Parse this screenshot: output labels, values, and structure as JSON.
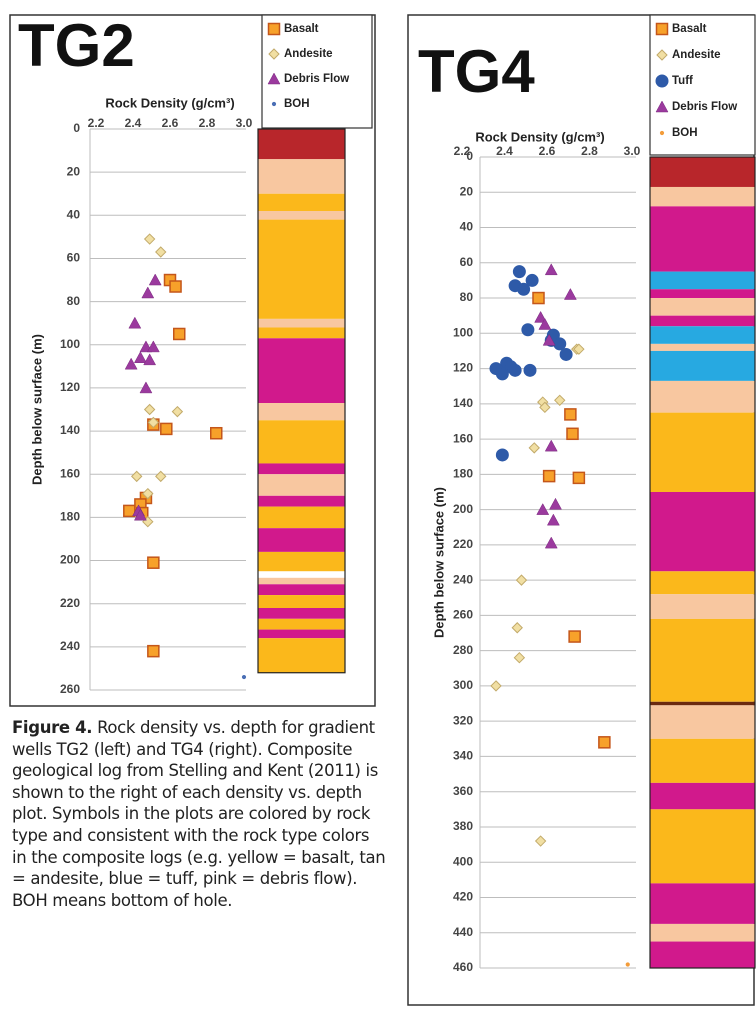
{
  "chart_data": [
    {
      "type": "scatter",
      "title": "TG2",
      "x_label": "Rock Density (g/cm³)",
      "y_label": "Depth below surface (m)",
      "xlim": [
        2.2,
        3.0
      ],
      "xticks": [
        2.2,
        2.4,
        2.6,
        2.8,
        {
          "value": 3,
          "label": "3.0"
        }
      ],
      "ylim": [
        0,
        260
      ],
      "yticks": [
        0,
        20,
        40,
        60,
        80,
        100,
        120,
        140,
        160,
        180,
        200,
        220,
        240,
        260
      ],
      "y_inverted": true,
      "x_axis_top": true,
      "grid": true,
      "legend": "top-right",
      "series": [
        {
          "name": "Basalt",
          "marker": "square",
          "color": "#f7a12a",
          "edge": "#c4561a",
          "x": [
            2.6,
            2.63,
            2.65,
            2.51,
            2.58,
            2.85,
            2.47,
            2.44,
            2.38,
            2.45,
            2.51,
            2.51
          ],
          "y": [
            70,
            73,
            95,
            137,
            139,
            141,
            171,
            174,
            177,
            178,
            201,
            242
          ]
        },
        {
          "name": "Andesite",
          "marker": "diamond",
          "color": "#f1dfa3",
          "edge": "#c2aa6a",
          "x": [
            2.49,
            2.55,
            2.49,
            2.64,
            2.51,
            2.42,
            2.55,
            2.48,
            2.48
          ],
          "y": [
            51,
            57,
            130,
            131,
            136,
            161,
            161,
            169,
            182
          ]
        },
        {
          "name": "Debris Flow",
          "marker": "triangle",
          "color": "#9b3a9e",
          "edge": "#7a2a7e",
          "x": [
            2.52,
            2.48,
            2.41,
            2.47,
            2.51,
            2.39,
            2.44,
            2.49,
            2.47,
            2.43,
            2.44
          ],
          "y": [
            70,
            76,
            90,
            101,
            101,
            109,
            106,
            107,
            120,
            177,
            179
          ]
        },
        {
          "name": "BOH",
          "marker": "dot",
          "color": "#4a6fb5",
          "edge": "#4a6fb5",
          "x": [
            3.0
          ],
          "y": [
            254
          ]
        }
      ],
      "log": [
        {
          "from": 0,
          "to": 14,
          "color": "#b8262b"
        },
        {
          "from": 14,
          "to": 30,
          "color": "#f8c7a0"
        },
        {
          "from": 30,
          "to": 38,
          "color": "#fbb81b"
        },
        {
          "from": 38,
          "to": 42,
          "color": "#f8c7a0"
        },
        {
          "from": 42,
          "to": 88,
          "color": "#fbb81b"
        },
        {
          "from": 88,
          "to": 92,
          "color": "#f8c7a0"
        },
        {
          "from": 92,
          "to": 97,
          "color": "#fbb81b"
        },
        {
          "from": 97,
          "to": 127,
          "color": "#d1198c"
        },
        {
          "from": 127,
          "to": 135,
          "color": "#f8c7a0"
        },
        {
          "from": 135,
          "to": 155,
          "color": "#fbb81b"
        },
        {
          "from": 155,
          "to": 160,
          "color": "#d1198c"
        },
        {
          "from": 160,
          "to": 170,
          "color": "#f8c7a0"
        },
        {
          "from": 170,
          "to": 175,
          "color": "#d1198c"
        },
        {
          "from": 175,
          "to": 185,
          "color": "#fbb81b"
        },
        {
          "from": 185,
          "to": 196,
          "color": "#d1198c"
        },
        {
          "from": 196,
          "to": 205,
          "color": "#fbb81b"
        },
        {
          "from": 205,
          "to": 208,
          "color": "#ffffff"
        },
        {
          "from": 208,
          "to": 211,
          "color": "#f8c7a0"
        },
        {
          "from": 211,
          "to": 216,
          "color": "#d1198c"
        },
        {
          "from": 216,
          "to": 222,
          "color": "#fbb81b"
        },
        {
          "from": 222,
          "to": 227,
          "color": "#d1198c"
        },
        {
          "from": 227,
          "to": 232,
          "color": "#fbb81b"
        },
        {
          "from": 232,
          "to": 236,
          "color": "#d1198c"
        },
        {
          "from": 236,
          "to": 252,
          "color": "#fbb81b"
        }
      ]
    },
    {
      "type": "scatter",
      "title": "TG4",
      "x_label": "Rock Density (g/cm³)",
      "y_label": "Depth below surface (m)",
      "xlim": [
        2.2,
        3.0
      ],
      "xticks": [
        2.2,
        2.4,
        2.6,
        2.8,
        {
          "value": 3,
          "label": "3.0"
        }
      ],
      "ylim": [
        0,
        460
      ],
      "yticks": [
        0,
        20,
        40,
        60,
        80,
        100,
        120,
        140,
        160,
        180,
        200,
        220,
        240,
        260,
        280,
        300,
        320,
        340,
        360,
        380,
        400,
        420,
        440,
        460
      ],
      "y_inverted": true,
      "x_axis_top": true,
      "grid": true,
      "legend": "top-right",
      "series": [
        {
          "name": "Basalt",
          "marker": "square",
          "color": "#f7a12a",
          "edge": "#c4561a",
          "x": [
            2.56,
            2.71,
            2.72,
            2.61,
            2.75,
            2.73,
            2.87
          ],
          "y": [
            80,
            146,
            157,
            181,
            182,
            272,
            332
          ]
        },
        {
          "name": "Andesite",
          "marker": "diamond",
          "color": "#f1dfa3",
          "edge": "#c2aa6a",
          "x": [
            2.74,
            2.75,
            2.58,
            2.59,
            2.66,
            2.54,
            2.48,
            2.46,
            2.47,
            2.36,
            2.57
          ],
          "y": [
            109,
            109,
            139,
            142,
            138,
            165,
            240,
            267,
            284,
            300,
            388
          ]
        },
        {
          "name": "Tuff",
          "marker": "circle",
          "color": "#2e5aa8",
          "edge": "#2e5aa8",
          "x": [
            2.47,
            2.53,
            2.45,
            2.49,
            2.51,
            2.63,
            2.62,
            2.66,
            2.69,
            2.41,
            2.43,
            2.36,
            2.39,
            2.45,
            2.52,
            2.39
          ],
          "y": [
            65,
            70,
            73,
            75,
            98,
            101,
            104,
            106,
            112,
            117,
            119,
            120,
            123,
            121,
            121,
            169
          ]
        },
        {
          "name": "Debris Flow",
          "marker": "triangle",
          "color": "#9b3a9e",
          "edge": "#7a2a7e",
          "x": [
            2.62,
            2.71,
            2.57,
            2.59,
            2.61,
            2.62,
            2.58,
            2.64,
            2.63,
            2.62
          ],
          "y": [
            64,
            78,
            91,
            95,
            104,
            164,
            200,
            197,
            206,
            219
          ]
        },
        {
          "name": "BOH",
          "marker": "dot",
          "color": "#f39c3a",
          "edge": "#f39c3a",
          "x": [
            2.98
          ],
          "y": [
            458
          ]
        }
      ],
      "log": [
        {
          "from": 0,
          "to": 17,
          "color": "#b8262b"
        },
        {
          "from": 17,
          "to": 28,
          "color": "#f8c7a0"
        },
        {
          "from": 28,
          "to": 65,
          "color": "#d1198c"
        },
        {
          "from": 65,
          "to": 75,
          "color": "#27a9e1"
        },
        {
          "from": 75,
          "to": 80,
          "color": "#d1198c"
        },
        {
          "from": 80,
          "to": 90,
          "color": "#f8c7a0"
        },
        {
          "from": 90,
          "to": 96,
          "color": "#d1198c"
        },
        {
          "from": 96,
          "to": 106,
          "color": "#27a9e1"
        },
        {
          "from": 106,
          "to": 110,
          "color": "#f8c7a0"
        },
        {
          "from": 110,
          "to": 127,
          "color": "#27a9e1"
        },
        {
          "from": 127,
          "to": 145,
          "color": "#f8c7a0"
        },
        {
          "from": 145,
          "to": 190,
          "color": "#fbb81b"
        },
        {
          "from": 190,
          "to": 235,
          "color": "#d1198c"
        },
        {
          "from": 235,
          "to": 248,
          "color": "#fbb81b"
        },
        {
          "from": 248,
          "to": 262,
          "color": "#f8c7a0"
        },
        {
          "from": 262,
          "to": 309,
          "color": "#fbb81b"
        },
        {
          "from": 309,
          "to": 311,
          "color": "#6b2a10"
        },
        {
          "from": 311,
          "to": 330,
          "color": "#f8c7a0"
        },
        {
          "from": 330,
          "to": 355,
          "color": "#fbb81b"
        },
        {
          "from": 355,
          "to": 370,
          "color": "#d1198c"
        },
        {
          "from": 370,
          "to": 412,
          "color": "#fbb81b"
        },
        {
          "from": 412,
          "to": 435,
          "color": "#d1198c"
        },
        {
          "from": 435,
          "to": 445,
          "color": "#f8c7a0"
        },
        {
          "from": 445,
          "to": 460,
          "color": "#d1198c"
        }
      ]
    }
  ],
  "caption": {
    "label": "Figure 4.",
    "text": "Rock density vs. depth for gradient wells TG2 (left) and TG4 (right). Composite geological log from Stelling and Kent (2011) is shown to the right of each density vs. depth plot. Symbols in the plots are colored by rock type and consistent with the rock type colors in the composite logs (e.g. yellow = basalt, tan = andesite, blue = tuff, pink = debris flow). BOH means bottom of hole."
  }
}
